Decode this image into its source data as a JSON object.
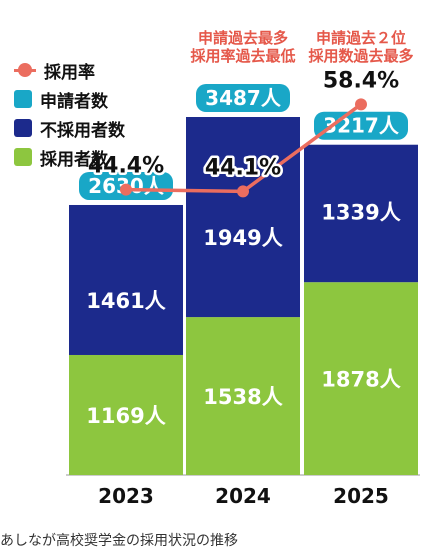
{
  "chart_data": {
    "type": "bar",
    "stacked": true,
    "categories": [
      "2023",
      "2024",
      "2025"
    ],
    "series": [
      {
        "name": "採用者数",
        "values": [
          1169,
          1538,
          1878
        ],
        "labels": [
          "1169人",
          "1538人",
          "1878人"
        ],
        "color": "#8DC63F"
      },
      {
        "name": "不採用者数",
        "values": [
          1461,
          1949,
          1339
        ],
        "labels": [
          "1461人",
          "1949人",
          "1339人"
        ],
        "color": "#1C2A8C"
      }
    ],
    "totals": {
      "name": "申請者数",
      "values": [
        2630,
        3487,
        3217
      ],
      "labels": [
        "2630人",
        "3487人",
        "3217人"
      ],
      "color": "#19A7C7"
    },
    "rate": {
      "name": "採用率",
      "values": [
        44.4,
        44.1,
        58.4
      ],
      "labels": [
        "44.4%",
        "44.1%",
        "58.4%"
      ],
      "color": "#EB6D5F"
    },
    "annotations": [
      {
        "category": "2024",
        "lines": [
          "申請過去最多",
          "採用率過去最低"
        ]
      },
      {
        "category": "2025",
        "lines": [
          "申請過去２位",
          "採用数過去最多"
        ]
      }
    ],
    "annotation_color": "#E5584A",
    "grid": false
  },
  "legend": [
    {
      "kind": "line",
      "label": "採用率",
      "color": "#EB6D5F",
      "name": "legend-rate"
    },
    {
      "kind": "box",
      "label": "申請者数",
      "color": "#19A7C7",
      "name": "legend-applicants"
    },
    {
      "kind": "box",
      "label": "不採用者数",
      "color": "#1C2A8C",
      "name": "legend-rejected"
    },
    {
      "kind": "box",
      "label": "採用者数",
      "color": "#8DC63F",
      "name": "legend-adopted"
    }
  ],
  "caption": "あしなが高校奨学金の採用状況の推移"
}
